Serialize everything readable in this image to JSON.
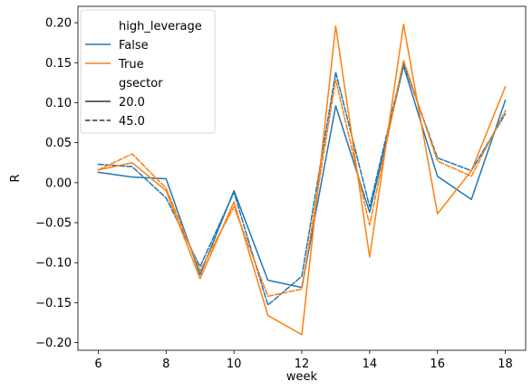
{
  "chart_data": {
    "type": "line",
    "xlabel": "week",
    "ylabel": "R",
    "xlim": [
      5.4,
      18.6
    ],
    "ylim": [
      -0.2095,
      0.2205
    ],
    "x_ticks": [
      "6",
      "8",
      "10",
      "12",
      "14",
      "16",
      "18"
    ],
    "y_ticks": [
      "−0.20",
      "−0.15",
      "−0.10",
      "−0.05",
      "0.00",
      "0.05",
      "0.10",
      "0.15",
      "0.20"
    ],
    "legend": {
      "placement": "top-left",
      "hue_title": "high_leverage",
      "hue_entries": [
        {
          "label": "False",
          "color": "#1f77b4"
        },
        {
          "label": "True",
          "color": "#ff7f0e"
        }
      ],
      "style_title": "gsector",
      "style_entries": [
        {
          "label": "20.0",
          "dash": "solid"
        },
        {
          "label": "45.0",
          "dash": "dashed"
        }
      ]
    },
    "x": [
      6,
      7,
      8,
      9,
      10,
      11,
      12,
      13,
      14,
      15,
      16,
      17,
      18
    ],
    "series": [
      {
        "high_leverage": "False",
        "gsector": "20.0",
        "color": "#1f77b4",
        "dash": "solid",
        "values": [
          0.013,
          0.007,
          0.005,
          -0.115,
          -0.01,
          -0.122,
          -0.131,
          0.096,
          -0.037,
          0.146,
          0.008,
          -0.021,
          0.103
        ]
      },
      {
        "high_leverage": "False",
        "gsector": "45.0",
        "color": "#1f77b4",
        "dash": "dashed",
        "values": [
          0.023,
          0.02,
          -0.019,
          -0.105,
          -0.012,
          -0.153,
          -0.117,
          0.138,
          -0.03,
          0.149,
          0.031,
          0.015,
          0.086
        ]
      },
      {
        "high_leverage": "True",
        "gsector": "20.0",
        "color": "#ff7f0e",
        "dash": "solid",
        "values": [
          0.016,
          0.025,
          -0.01,
          -0.12,
          -0.024,
          -0.166,
          -0.19,
          0.196,
          -0.093,
          0.198,
          -0.039,
          0.015,
          0.12
        ]
      },
      {
        "high_leverage": "True",
        "gsector": "45.0",
        "color": "#ff7f0e",
        "dash": "dashed",
        "values": [
          0.016,
          0.036,
          -0.007,
          -0.11,
          -0.03,
          -0.142,
          -0.133,
          0.129,
          -0.053,
          0.153,
          0.027,
          0.008,
          0.09
        ]
      }
    ]
  }
}
